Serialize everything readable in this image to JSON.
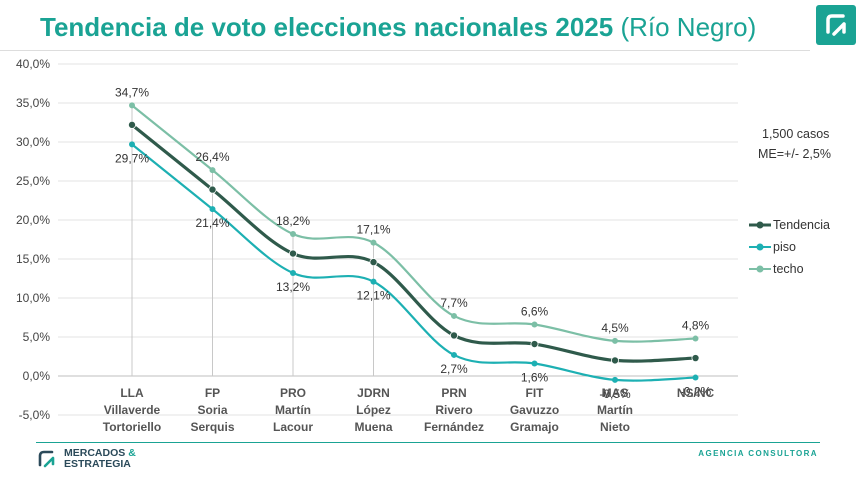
{
  "header": {
    "title_main": "Tendencia de voto elecciones nacionales 2025",
    "title_sub": "(Río Negro)",
    "logo_icon": "mercados-estrategia-logo-icon"
  },
  "footer": {
    "brand_line1": "MERCADOS",
    "brand_amp": "&",
    "brand_line2": "ESTRATEGIA",
    "agency": "AGENCIA CONSULTORA"
  },
  "colors": {
    "tendencia": "#2f5a4b",
    "piso": "#1db0b3",
    "techo": "#7cbfa6",
    "accent": "#1aa394"
  },
  "chart_data": {
    "type": "line",
    "note_line1": "1,500 casos",
    "note_line2": "ME=+/- 2,5%",
    "ylim": [
      -5,
      40
    ],
    "yticks": [
      "-5,0%",
      "0,0%",
      "5,0%",
      "10,0%",
      "15,0%",
      "20,0%",
      "25,0%",
      "30,0%",
      "35,0%",
      "40,0%"
    ],
    "ytick_values": [
      -5,
      0,
      5,
      10,
      15,
      20,
      25,
      30,
      35,
      40
    ],
    "categories": [
      [
        "LLA",
        "Villaverde",
        "Tortoriello"
      ],
      [
        "FP",
        "Soria",
        "Serquis"
      ],
      [
        "PRO",
        "Martín",
        "Lacour"
      ],
      [
        "JDRN",
        "López",
        "Muena"
      ],
      [
        "PRN",
        "Rivero",
        "Fernández"
      ],
      [
        "FIT",
        "Gavuzzo",
        "Gramajo"
      ],
      [
        "MAS",
        "Martín",
        "Nieto"
      ],
      [
        "NS/NC"
      ]
    ],
    "series": [
      {
        "name": "Tendencia",
        "key": "tendencia",
        "values": [
          32.2,
          23.9,
          15.7,
          14.6,
          5.2,
          4.1,
          2.0,
          2.3
        ]
      },
      {
        "name": "piso",
        "key": "piso",
        "values": [
          29.7,
          21.4,
          13.2,
          12.1,
          2.7,
          1.6,
          -0.5,
          -0.2
        ]
      },
      {
        "name": "techo",
        "key": "techo",
        "values": [
          34.7,
          26.4,
          18.2,
          17.1,
          7.7,
          6.6,
          4.5,
          4.8
        ]
      }
    ],
    "labels_techo": [
      "34,7%",
      "26,4%",
      "18,2%",
      "17,1%",
      "7,7%",
      "6,6%",
      "4,5%",
      "4,8%"
    ],
    "labels_piso": [
      "29,7%",
      "21,4%",
      "13,2%",
      "12,1%",
      "2,7%",
      "1,6%",
      "-0,5%",
      "-0,2%"
    ],
    "legend_position": "right",
    "grid": true
  }
}
